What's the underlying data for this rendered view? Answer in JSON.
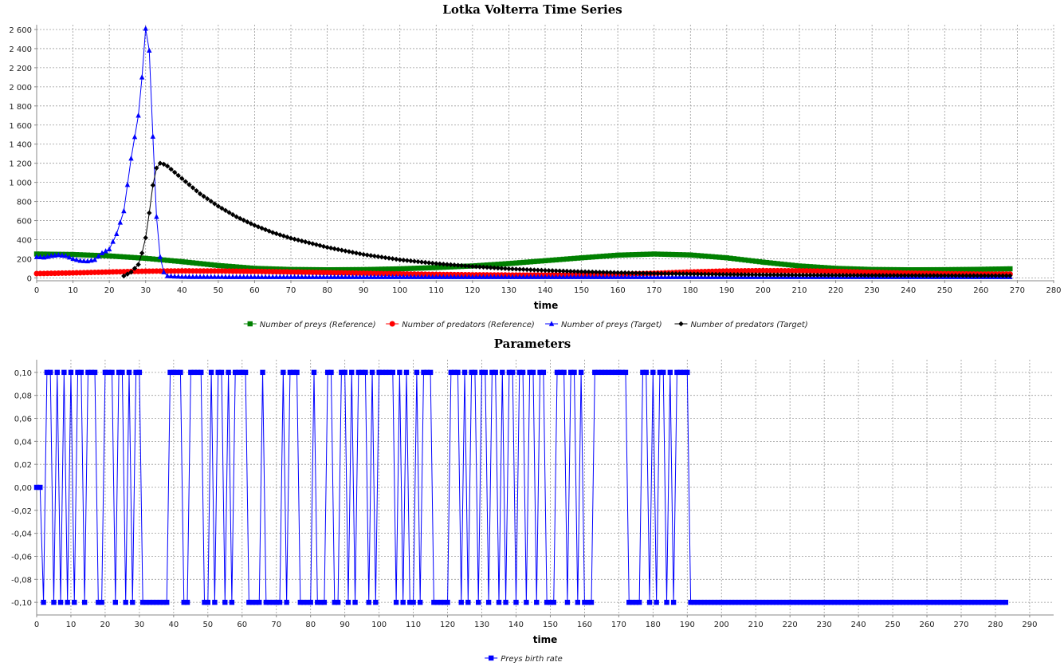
{
  "chart_data": [
    {
      "type": "line",
      "title": "Lotka Volterra Time Series",
      "xlabel": "time",
      "ylabel": "",
      "xlim": [
        0,
        280
      ],
      "ylim": [
        -30,
        2650
      ],
      "x_ticks": [
        0,
        10,
        20,
        30,
        40,
        50,
        60,
        70,
        80,
        90,
        100,
        110,
        120,
        130,
        140,
        150,
        160,
        170,
        180,
        190,
        200,
        210,
        220,
        230,
        240,
        250,
        260,
        270,
        280
      ],
      "y_ticks": [
        0,
        200,
        400,
        600,
        800,
        1000,
        1200,
        1400,
        1600,
        1800,
        2000,
        2200,
        2400,
        2600
      ],
      "y_tick_labels": [
        "0",
        "200",
        "400",
        "600",
        "800",
        "1 000",
        "1 200",
        "1 400",
        "1 600",
        "1 800",
        "2 000",
        "2 200",
        "2 400",
        "2 600"
      ],
      "grid": true,
      "legend_position": "bottom",
      "series": [
        {
          "name": "Number of preys (Reference)",
          "color": "#008000",
          "marker": "square",
          "step": 1,
          "x": [
            0,
            10,
            20,
            30,
            40,
            50,
            60,
            70,
            80,
            90,
            100,
            110,
            120,
            130,
            140,
            150,
            160,
            170,
            180,
            190,
            200,
            210,
            220,
            230,
            240,
            250,
            260,
            268
          ],
          "y": [
            250,
            245,
            230,
            205,
            170,
            130,
            100,
            88,
            85,
            87,
            95,
            108,
            125,
            150,
            180,
            210,
            238,
            250,
            240,
            210,
            165,
            125,
            100,
            88,
            85,
            86,
            90,
            95
          ]
        },
        {
          "name": "Number of predators (Reference)",
          "color": "#ff0000",
          "marker": "circle",
          "step": 1,
          "x": [
            0,
            10,
            20,
            30,
            40,
            50,
            60,
            70,
            80,
            90,
            100,
            110,
            120,
            130,
            140,
            150,
            160,
            170,
            180,
            190,
            200,
            210,
            220,
            230,
            240,
            250,
            260,
            268
          ],
          "y": [
            45,
            52,
            62,
            70,
            73,
            72,
            68,
            62,
            55,
            48,
            42,
            36,
            32,
            30,
            30,
            32,
            38,
            48,
            62,
            72,
            76,
            74,
            68,
            58,
            50,
            44,
            40,
            40
          ]
        },
        {
          "name": "Number of preys (Target)",
          "color": "#0000ff",
          "marker": "triangle",
          "step": 1,
          "x": [
            0,
            2,
            4,
            6,
            8,
            10,
            12,
            14,
            16,
            18,
            20,
            22,
            24,
            26,
            28,
            29,
            30,
            31,
            32,
            33,
            34,
            35,
            36,
            40,
            60,
            100,
            150,
            200,
            268
          ],
          "y": [
            220,
            215,
            230,
            240,
            230,
            200,
            180,
            175,
            190,
            260,
            300,
            460,
            700,
            1250,
            1700,
            2100,
            2610,
            2380,
            1480,
            640,
            220,
            60,
            20,
            12,
            10,
            10,
            10,
            10,
            10
          ]
        },
        {
          "name": "Number of predators (Target)",
          "color": "#000000",
          "marker": "diamond",
          "step": 1,
          "x": [
            24,
            26,
            28,
            29,
            30,
            31,
            32,
            33,
            34,
            35,
            36,
            40,
            45,
            50,
            55,
            60,
            65,
            70,
            80,
            90,
            100,
            110,
            120,
            130,
            140,
            150,
            160,
            170,
            180,
            190,
            200,
            210,
            220,
            230,
            240,
            250,
            260,
            268
          ],
          "y": [
            20,
            60,
            140,
            260,
            420,
            680,
            970,
            1150,
            1200,
            1190,
            1170,
            1040,
            880,
            750,
            640,
            550,
            475,
            415,
            320,
            245,
            190,
            150,
            120,
            95,
            78,
            65,
            55,
            47,
            41,
            36,
            33,
            30,
            28,
            26,
            25,
            24,
            23,
            23
          ]
        }
      ]
    },
    {
      "type": "line",
      "title": "Parameters",
      "xlabel": "time",
      "ylabel": "",
      "xlim": [
        0,
        297
      ],
      "ylim": [
        -0.111,
        0.111
      ],
      "x_ticks": [
        0,
        10,
        20,
        30,
        40,
        50,
        60,
        70,
        80,
        90,
        100,
        110,
        120,
        130,
        140,
        150,
        160,
        170,
        180,
        190,
        200,
        210,
        220,
        230,
        240,
        250,
        260,
        270,
        280,
        290
      ],
      "y_ticks": [
        -0.1,
        -0.08,
        -0.06,
        -0.04,
        -0.02,
        0.0,
        0.02,
        0.04,
        0.06,
        0.08,
        0.1
      ],
      "y_tick_labels": [
        "-0,10",
        "-0,08",
        "-0,06",
        "-0,04",
        "-0,02",
        "0,00",
        "0,02",
        "0,04",
        "0,06",
        "0,08",
        "0,10"
      ],
      "grid": true,
      "legend_position": "bottom",
      "series": [
        {
          "name": "Preys birth rate",
          "color": "#0000ff",
          "marker": "square",
          "x_start": 0,
          "x_step": 1,
          "y": [
            0,
            0,
            -0.1,
            0.1,
            0.1,
            -0.1,
            0.1,
            -0.1,
            0.1,
            -0.1,
            0.1,
            -0.1,
            0.1,
            0.1,
            -0.1,
            0.1,
            0.1,
            0.1,
            -0.1,
            -0.1,
            0.1,
            0.1,
            0.1,
            -0.1,
            0.1,
            0.1,
            -0.1,
            0.1,
            -0.1,
            0.1,
            0.1,
            -0.1,
            -0.1,
            -0.1,
            -0.1,
            -0.1,
            -0.1,
            -0.1,
            -0.1,
            0.1,
            0.1,
            0.1,
            0.1,
            -0.1,
            -0.1,
            0.1,
            0.1,
            0.1,
            0.1,
            -0.1,
            -0.1,
            0.1,
            -0.1,
            0.1,
            0.1,
            -0.1,
            0.1,
            -0.1,
            0.1,
            0.1,
            0.1,
            0.1,
            -0.1,
            -0.1,
            -0.1,
            -0.1,
            0.1,
            -0.1,
            -0.1,
            -0.1,
            -0.1,
            -0.1,
            0.1,
            -0.1,
            0.1,
            0.1,
            0.1,
            -0.1,
            -0.1,
            -0.1,
            -0.1,
            0.1,
            -0.1,
            -0.1,
            -0.1,
            0.1,
            0.1,
            -0.1,
            -0.1,
            0.1,
            0.1,
            -0.1,
            0.1,
            -0.1,
            0.1,
            0.1,
            0.1,
            -0.1,
            0.1,
            -0.1,
            0.1,
            0.1,
            0.1,
            0.1,
            0.1,
            -0.1,
            0.1,
            -0.1,
            0.1,
            -0.1,
            -0.1,
            0.1,
            -0.1,
            0.1,
            0.1,
            0.1,
            -0.1,
            -0.1,
            -0.1,
            -0.1,
            -0.1,
            0.1,
            0.1,
            0.1,
            -0.1,
            0.1,
            -0.1,
            0.1,
            0.1,
            -0.1,
            0.1,
            0.1,
            -0.1,
            0.1,
            0.1,
            -0.1,
            0.1,
            -0.1,
            0.1,
            0.1,
            -0.1,
            0.1,
            0.1,
            -0.1,
            0.1,
            0.1,
            -0.1,
            0.1,
            0.1,
            -0.1,
            -0.1,
            -0.1,
            0.1,
            0.1,
            0.1,
            -0.1,
            0.1,
            0.1,
            -0.1,
            0.1,
            -0.1,
            -0.1,
            -0.1,
            0.1,
            0.1,
            0.1,
            0.1,
            0.1,
            0.1,
            0.1,
            0.1,
            0.1,
            0.1,
            -0.1,
            -0.1,
            -0.1,
            -0.1,
            0.1,
            0.1,
            -0.1,
            0.1,
            -0.1,
            0.1,
            0.1,
            -0.1,
            0.1,
            -0.1,
            0.1,
            0.1,
            0.1,
            0.1,
            -0.1,
            -0.1,
            -0.1,
            -0.1,
            -0.1,
            -0.1,
            -0.1,
            -0.1,
            -0.1,
            -0.1,
            -0.1,
            -0.1,
            -0.1,
            -0.1,
            -0.1,
            -0.1,
            -0.1,
            -0.1,
            -0.1,
            -0.1,
            -0.1,
            -0.1,
            -0.1,
            -0.1,
            -0.1,
            -0.1,
            -0.1,
            -0.1,
            -0.1,
            -0.1,
            -0.1,
            -0.1,
            -0.1,
            -0.1,
            -0.1,
            -0.1,
            -0.1,
            -0.1,
            -0.1,
            -0.1,
            -0.1,
            -0.1,
            -0.1,
            -0.1,
            -0.1,
            -0.1,
            -0.1,
            -0.1,
            -0.1,
            -0.1,
            -0.1,
            -0.1,
            -0.1,
            -0.1,
            -0.1,
            -0.1,
            -0.1,
            -0.1,
            -0.1,
            -0.1,
            -0.1,
            -0.1,
            -0.1,
            -0.1,
            -0.1,
            -0.1,
            -0.1,
            -0.1,
            -0.1,
            -0.1,
            -0.1,
            -0.1,
            -0.1,
            -0.1,
            -0.1,
            -0.1,
            -0.1,
            -0.1,
            -0.1,
            -0.1,
            -0.1,
            -0.1,
            -0.1,
            -0.1,
            -0.1,
            -0.1,
            -0.1,
            -0.1,
            -0.1,
            -0.1,
            -0.1,
            -0.1,
            -0.1
          ]
        }
      ]
    }
  ]
}
